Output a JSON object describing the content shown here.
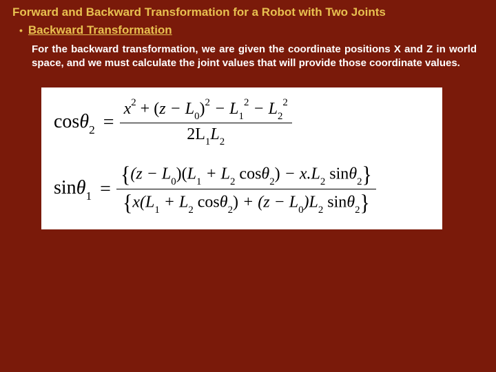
{
  "title": "Forward and Backward Transformation for a Robot with Two Joints",
  "bullet_glyph": "•",
  "subtitle": "Backward Transformation",
  "body": "For the backward transformation, we are given the coordinate positions X and Z in world space, and we must calculate the joint values that will provide those coordinate values.",
  "eq1": {
    "lhs_func": "cos",
    "lhs_theta": "θ",
    "lhs_sub": "2",
    "num_a": "x",
    "num_a_sup": "2",
    "num_plus1": " + (",
    "num_b": "z − L",
    "num_b_sub": "0",
    "num_close_sup": ")",
    "num_close_sup_val": "2",
    "num_minus1": " − L",
    "num_c_sub": "1",
    "num_c_sup": "2",
    "num_minus2": " − L",
    "num_d_sub": "2",
    "num_d_sup": "2",
    "den_pre": "2L",
    "den_a_sub": "1",
    "den_mid": "L",
    "den_b_sub": "2"
  },
  "eq2": {
    "lhs_func": "sin",
    "lhs_theta": "θ",
    "lhs_sub": "1",
    "num_open": "{",
    "num_a": "(z − L",
    "num_a_sub": "0",
    "num_a_close": ")(",
    "num_b": "L",
    "num_b_sub": "1",
    "num_b_plus": " + L",
    "num_c_sub": "2",
    "num_c_cos": " cos",
    "num_c_theta": "θ",
    "num_c_tsub": "2",
    "num_c_close": ")",
    "num_minus": " − x.L",
    "num_d_sub": "2",
    "num_d_sin": " sin",
    "num_d_theta": "θ",
    "num_d_tsub": "2",
    "num_close": "}",
    "den_open": "{",
    "den_a": "x(L",
    "den_a_sub": "1",
    "den_a_plus": " + L",
    "den_b_sub": "2",
    "den_b_cos": " cos",
    "den_b_theta": "θ",
    "den_b_tsub": "2",
    "den_b_close": ")",
    "den_plus": " + (z − L",
    "den_c_sub": "0",
    "den_c_close": ")L",
    "den_d_sub": "2",
    "den_d_sin": " sin",
    "den_d_theta": "θ",
    "den_d_tsub": "2",
    "den_close": "}"
  },
  "colors": {
    "background": "#7a1a0a",
    "heading": "#e8c050",
    "body_text": "#ffffff",
    "formula_bg": "#ffffff",
    "formula_text": "#000000"
  }
}
